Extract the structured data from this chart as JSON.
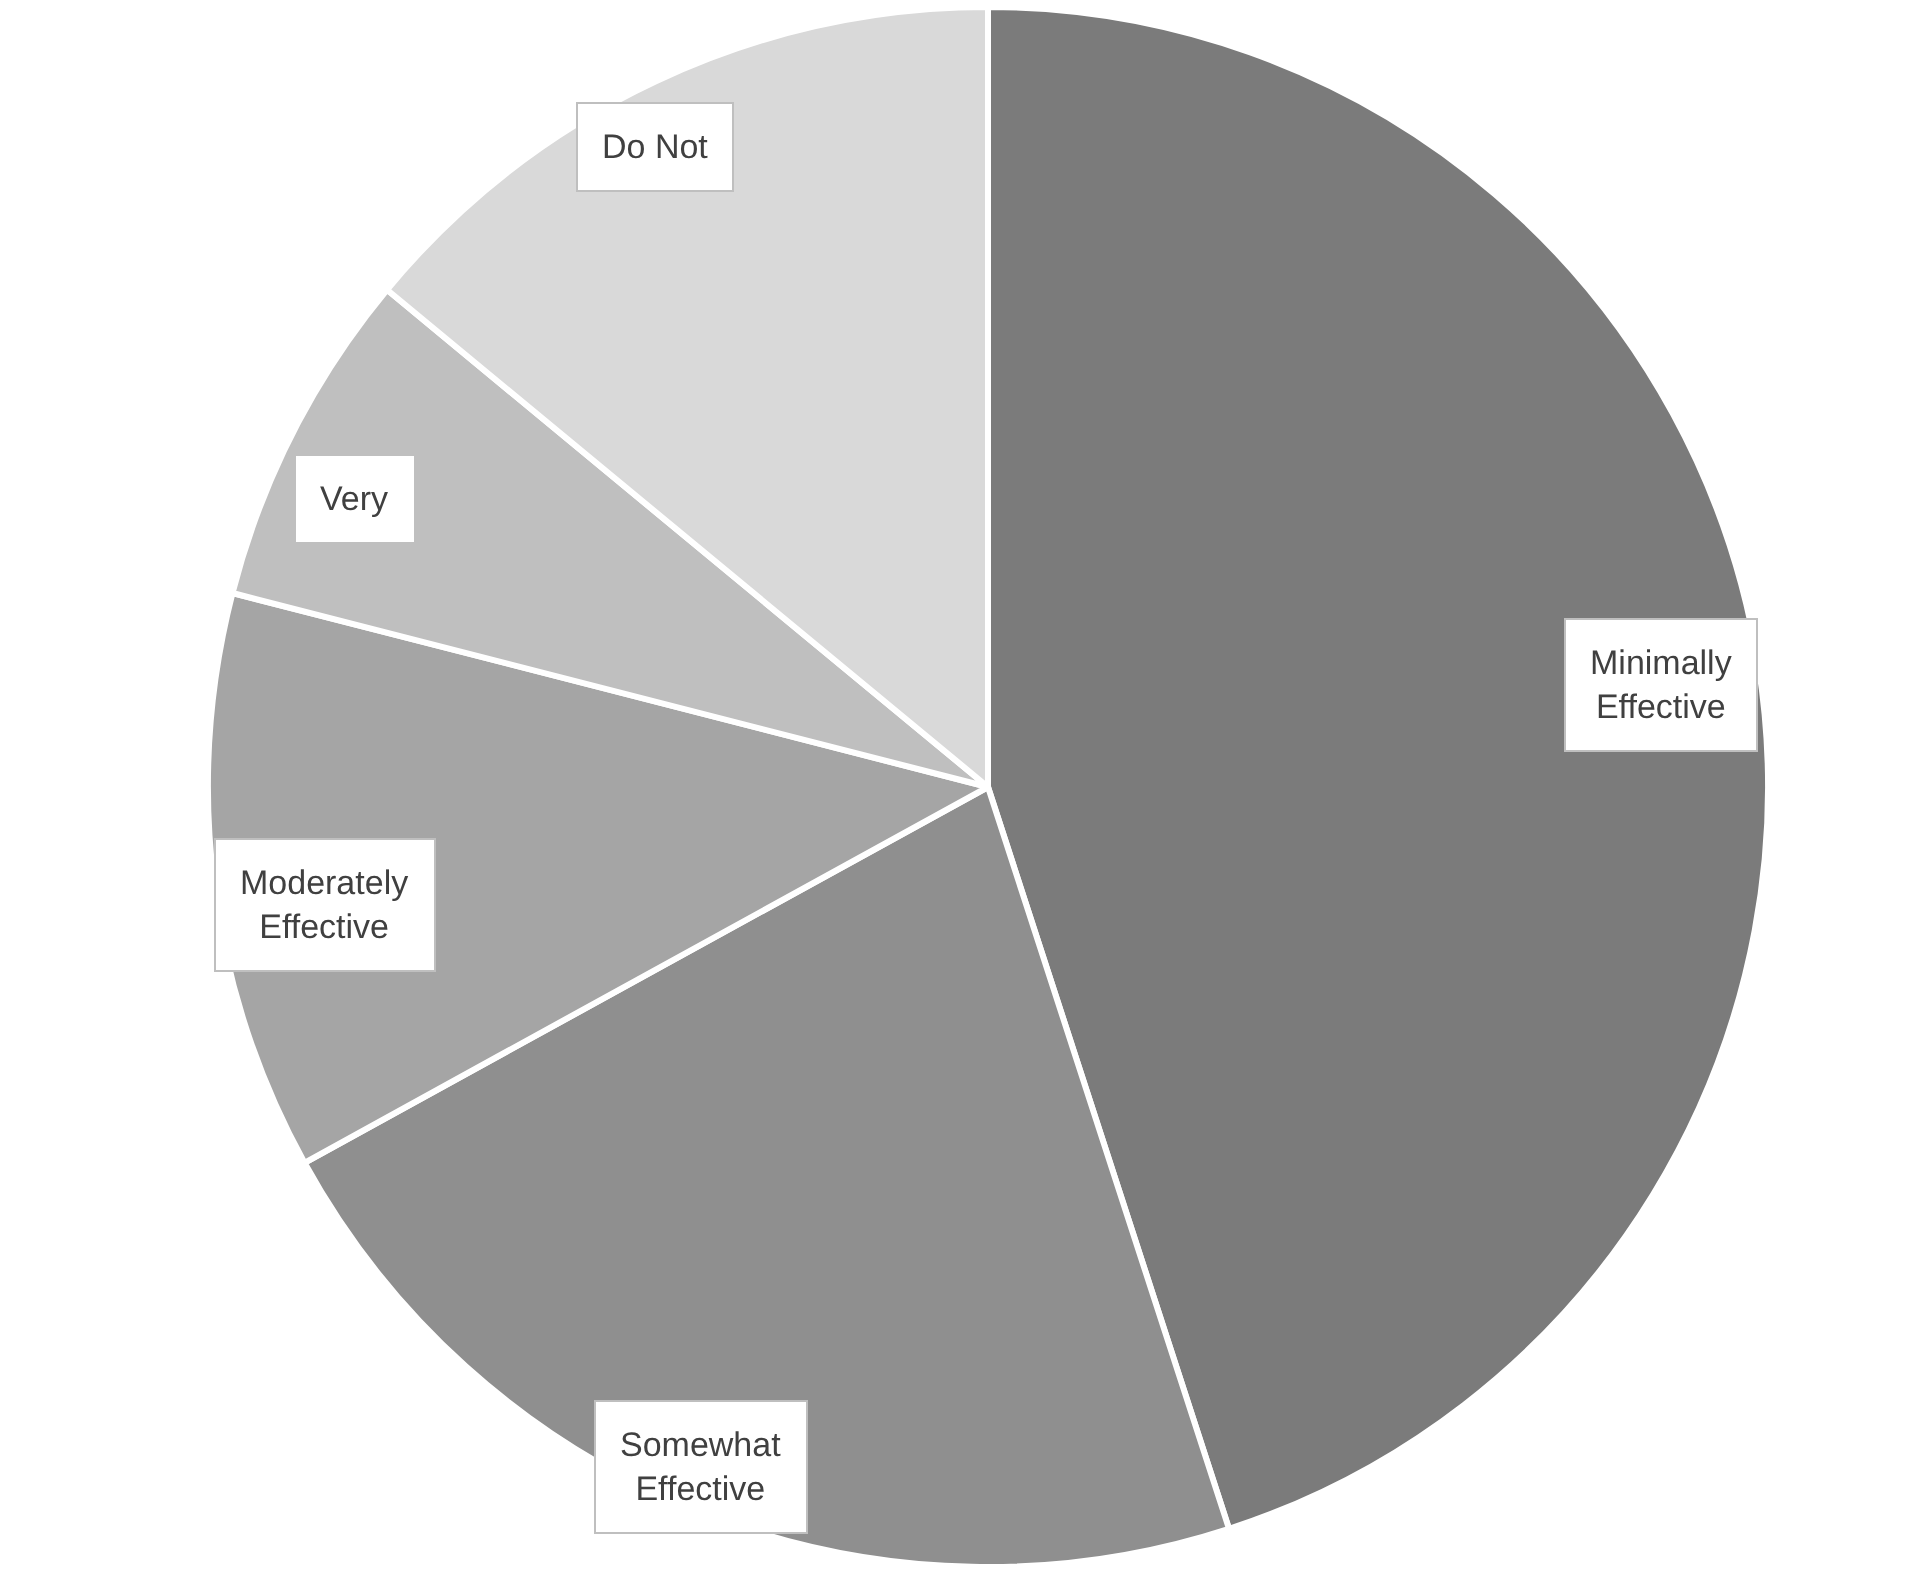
{
  "chart_data": {
    "type": "pie",
    "categories": [
      "Minimally Effective",
      "Somewhat Effective",
      "Moderately Effective",
      "Very",
      "Do Not"
    ],
    "values": [
      45,
      22,
      12,
      7,
      14
    ],
    "colors": [
      "#7b7b7b",
      "#8f8f8f",
      "#a5a5a5",
      "#bfbfbf",
      "#d9d9d9"
    ],
    "legend": false
  }
}
